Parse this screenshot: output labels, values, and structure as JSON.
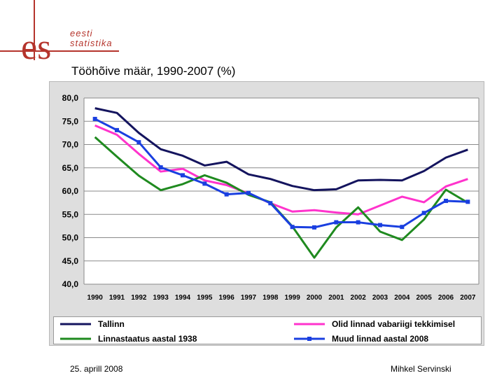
{
  "logo": {
    "mark": "es",
    "line1": "eesti",
    "line2": "statistika"
  },
  "slide": {
    "title": "Tööhõive määr, 1990-2007 (%)"
  },
  "footer": {
    "date": "25. aprill 2008",
    "author": "Mihkel Servinski"
  },
  "chart_data": {
    "type": "line",
    "title": "",
    "xlabel": "",
    "ylabel": "",
    "x": [
      "1990",
      "1991",
      "1992",
      "1993",
      "1994",
      "1995",
      "1996",
      "1997",
      "1998",
      "1999",
      "2000",
      "2001",
      "2002",
      "2003",
      "2004",
      "2005",
      "2006",
      "2007"
    ],
    "ylim": [
      40,
      80
    ],
    "yticks": [
      "80,0",
      "75,0",
      "70,0",
      "65,0",
      "60,0",
      "55,0",
      "50,0",
      "45,0",
      "40,0"
    ],
    "grid": true,
    "legend_position": "bottom",
    "series": [
      {
        "name": "Tallinn",
        "color": "#14145e",
        "marker": "none",
        "values": [
          77.8,
          76.8,
          72.5,
          69.0,
          67.6,
          65.5,
          66.3,
          63.6,
          62.6,
          61.1,
          60.2,
          60.4,
          62.3,
          62.4,
          62.3,
          64.3,
          67.2,
          68.9
        ]
      },
      {
        "name": "Olid linnad vabariigi tekkimisel",
        "color": "#ff33cc",
        "marker": "none",
        "values": [
          74.1,
          72.1,
          68.0,
          64.2,
          64.8,
          62.3,
          61.3,
          59.5,
          57.4,
          55.6,
          55.9,
          55.4,
          55.0,
          56.9,
          58.8,
          57.6,
          61.0,
          62.6
        ]
      },
      {
        "name": "Linnastaatus aastal 1938",
        "color": "#1f8a1f",
        "marker": "none",
        "values": [
          71.6,
          67.4,
          63.3,
          60.2,
          61.5,
          63.4,
          61.8,
          59.2,
          57.6,
          52.4,
          45.7,
          52.2,
          56.5,
          51.3,
          49.5,
          53.9,
          60.3,
          57.5
        ]
      },
      {
        "name": "Muud linnad aastal 2008",
        "color": "#1a3fe0",
        "marker": "square",
        "values": [
          75.5,
          73.1,
          70.5,
          65.1,
          63.4,
          61.6,
          59.3,
          59.6,
          57.4,
          52.3,
          52.2,
          53.3,
          53.3,
          52.7,
          52.3,
          55.3,
          57.9,
          57.7
        ]
      }
    ]
  }
}
